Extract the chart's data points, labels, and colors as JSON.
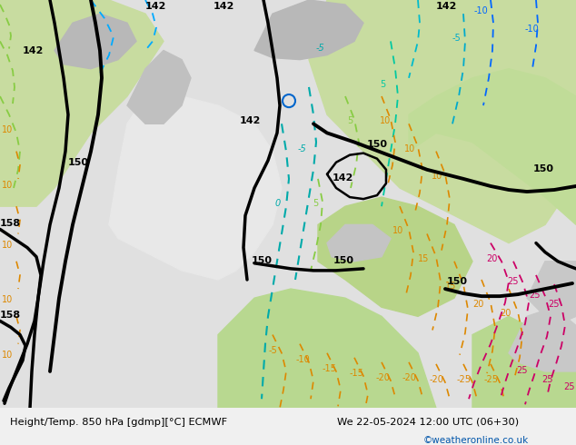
{
  "title_left": "Height/Temp. 850 hPa [gdmp][°C] ECMWF",
  "title_right": "We 22-05-2024 12:00 UTC (06+30)",
  "credit": "©weatheronline.co.uk",
  "fig_width": 6.34,
  "fig_height": 4.9,
  "dpi": 100,
  "bg_map_color": "#d4e8b0",
  "ocean_color": "#e8e8e8",
  "land_light_green": "#b8d890",
  "land_gray": "#c0c0c0",
  "land_light_gray": "#d8d8d8",
  "bottom_bar_color": "#f0f0f0",
  "bottom_text_color": "#000000",
  "credit_color": "#0055aa"
}
